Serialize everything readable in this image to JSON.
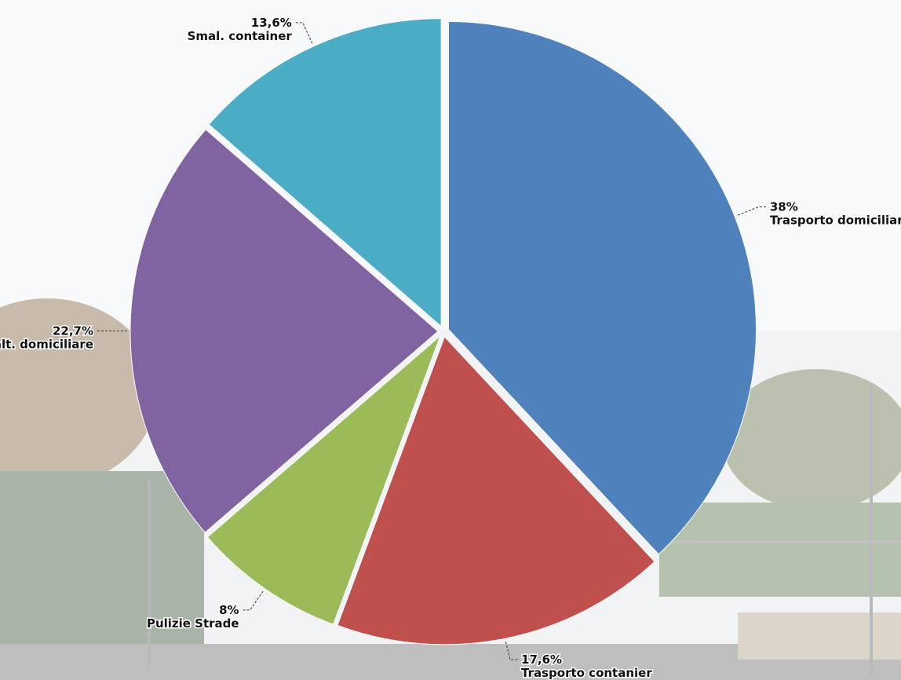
{
  "chart_data": {
    "type": "pie",
    "categories": [
      "Trasporto domiciliare",
      "Trasporto contanier",
      "Pulizie Strade",
      "Smalt. domiciliare",
      "Smal. container"
    ],
    "values": [
      38,
      17.6,
      8,
      22.7,
      13.6
    ],
    "value_labels": [
      "38%",
      "17,6%",
      "8%",
      "22,7%",
      "13,6%"
    ],
    "colors": [
      "#4f81bd",
      "#c0504d",
      "#9bbb59",
      "#8064a2",
      "#4bacc6"
    ]
  }
}
